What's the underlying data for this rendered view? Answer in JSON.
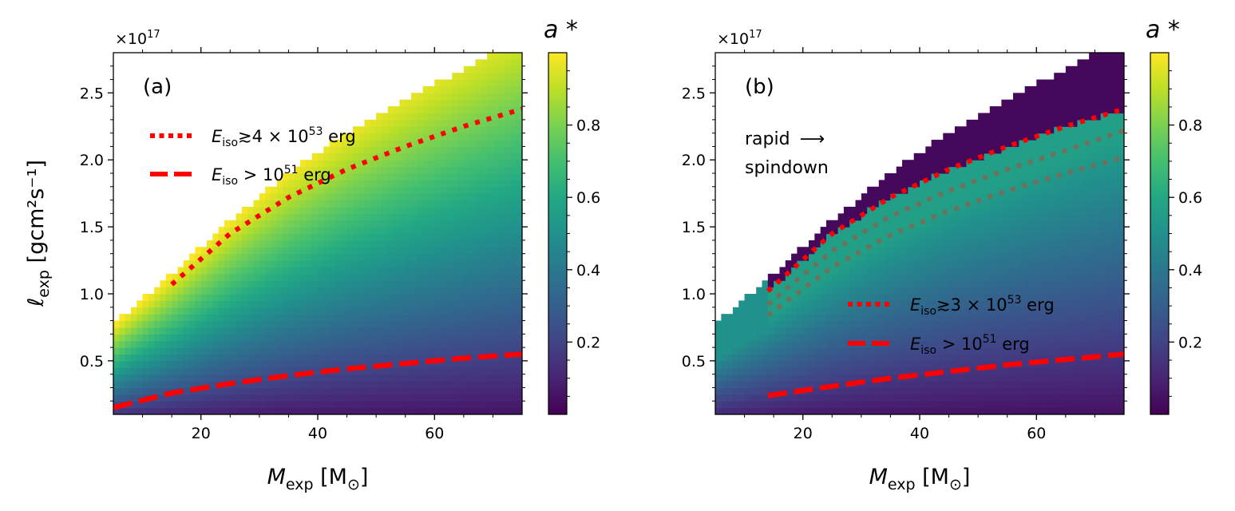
{
  "figure": {
    "ylabel_main": "ℓ",
    "ylabel_sub": "exp",
    "ylabel_units": " [gcm²s⁻¹]",
    "xlabel_main": "M",
    "xlabel_sub": "exp",
    "xlabel_units_open": " [M",
    "xlabel_units_sub": "⊙",
    "xlabel_units_close": "]",
    "offset_base": "×10",
    "offset_exp": "17",
    "colorbar_label": "a *",
    "colorbar_ticks": [
      "0.2",
      "0.4",
      "0.6",
      "0.8"
    ],
    "colormap": "viridis",
    "line_color": "#ff0000"
  },
  "chart_data": [
    {
      "type": "heatmap",
      "panel_label": "(a)",
      "xlabel": "M_exp [M_⊙]",
      "ylabel": "ℓ_exp [gcm²s⁻¹]",
      "xlim": [
        5,
        75
      ],
      "ylim": [
        0.1,
        2.8
      ],
      "y_scale_factor": "1e17",
      "x_ticks": [
        20,
        40,
        60
      ],
      "y_ticks": [
        0.5,
        1.0,
        1.5,
        2.0,
        2.5
      ],
      "x_tick_labels": [
        "20",
        "40",
        "60"
      ],
      "y_tick_labels": [
        "0.5",
        "1.0",
        "1.5",
        "2.0",
        "2.5"
      ],
      "colorbar": {
        "label": "a *",
        "range": [
          0.0,
          1.0
        ],
        "ticks": [
          0.2,
          0.4,
          0.6,
          0.8
        ]
      },
      "region_upper_boundary": {
        "x": [
          5,
          15,
          25,
          35,
          45,
          55,
          65,
          75
        ],
        "y": [
          0.78,
          1.15,
          1.55,
          1.9,
          2.2,
          2.45,
          2.68,
          2.9
        ]
      },
      "lines": [
        {
          "style": "dotted",
          "legend_prefix": "E",
          "legend_sub": "iso",
          "legend_mid": "≳4 × 10",
          "legend_sup": "53",
          "legend_suffix": " erg",
          "x": [
            15,
            25,
            35,
            45,
            55,
            65,
            75
          ],
          "y": [
            1.07,
            1.45,
            1.72,
            1.93,
            2.1,
            2.25,
            2.38
          ]
        },
        {
          "style": "dashed",
          "legend_prefix": "E",
          "legend_sub": "iso",
          "legend_mid": " > 10",
          "legend_sup": "51",
          "legend_suffix": " erg",
          "x": [
            5,
            15,
            25,
            35,
            45,
            55,
            65,
            75
          ],
          "y": [
            0.15,
            0.26,
            0.33,
            0.39,
            0.44,
            0.48,
            0.52,
            0.55
          ]
        }
      ],
      "legend_position": "upper-left"
    },
    {
      "type": "heatmap",
      "panel_label": "(b)",
      "xlabel": "M_exp [M_⊙]",
      "xlim": [
        5,
        75
      ],
      "ylim": [
        0.1,
        2.8
      ],
      "y_scale_factor": "1e17",
      "x_ticks": [
        20,
        40,
        60
      ],
      "y_ticks": [
        0.5,
        1.0,
        1.5,
        2.0,
        2.5
      ],
      "x_tick_labels": [
        "20",
        "40",
        "60"
      ],
      "y_tick_labels": [
        "0.5",
        "1.0",
        "1.5",
        "2.0",
        "2.5"
      ],
      "colorbar": {
        "label": "a *",
        "range": [
          0.0,
          1.0
        ],
        "ticks": [
          0.2,
          0.4,
          0.6,
          0.8
        ]
      },
      "annotation": {
        "line1": "rapid",
        "arrow": "⟶",
        "line2": "spindown"
      },
      "region_upper_boundary": {
        "x": [
          5,
          15,
          25,
          35,
          45,
          55,
          65,
          75
        ],
        "y": [
          0.78,
          1.15,
          1.55,
          1.9,
          2.2,
          2.45,
          2.68,
          2.9
        ]
      },
      "spindown_cutoff_x": 14,
      "lines": [
        {
          "style": "dotted",
          "legend_prefix": "E",
          "legend_sub": "iso",
          "legend_mid": "≳3 × 10",
          "legend_sup": "53",
          "legend_suffix": " erg",
          "x": [
            14,
            25,
            35,
            45,
            55,
            65,
            75
          ],
          "y": [
            1.02,
            1.45,
            1.72,
            1.93,
            2.1,
            2.25,
            2.38
          ]
        },
        {
          "style": "dotted-faint",
          "x": [
            14,
            25,
            35,
            45,
            55,
            65,
            75
          ],
          "y": [
            0.92,
            1.32,
            1.58,
            1.77,
            1.93,
            2.07,
            2.22
          ]
        },
        {
          "style": "dotted-faint",
          "x": [
            14,
            25,
            35,
            45,
            55,
            65,
            75
          ],
          "y": [
            0.84,
            1.2,
            1.44,
            1.62,
            1.77,
            1.9,
            2.02
          ]
        },
        {
          "style": "dashed",
          "legend_prefix": "E",
          "legend_sub": "iso",
          "legend_mid": " > 10",
          "legend_sup": "51",
          "legend_suffix": " erg",
          "x": [
            14,
            25,
            35,
            45,
            55,
            65,
            75
          ],
          "y": [
            0.24,
            0.31,
            0.37,
            0.42,
            0.47,
            0.51,
            0.55
          ]
        }
      ],
      "legend_position": "lower-right"
    }
  ]
}
